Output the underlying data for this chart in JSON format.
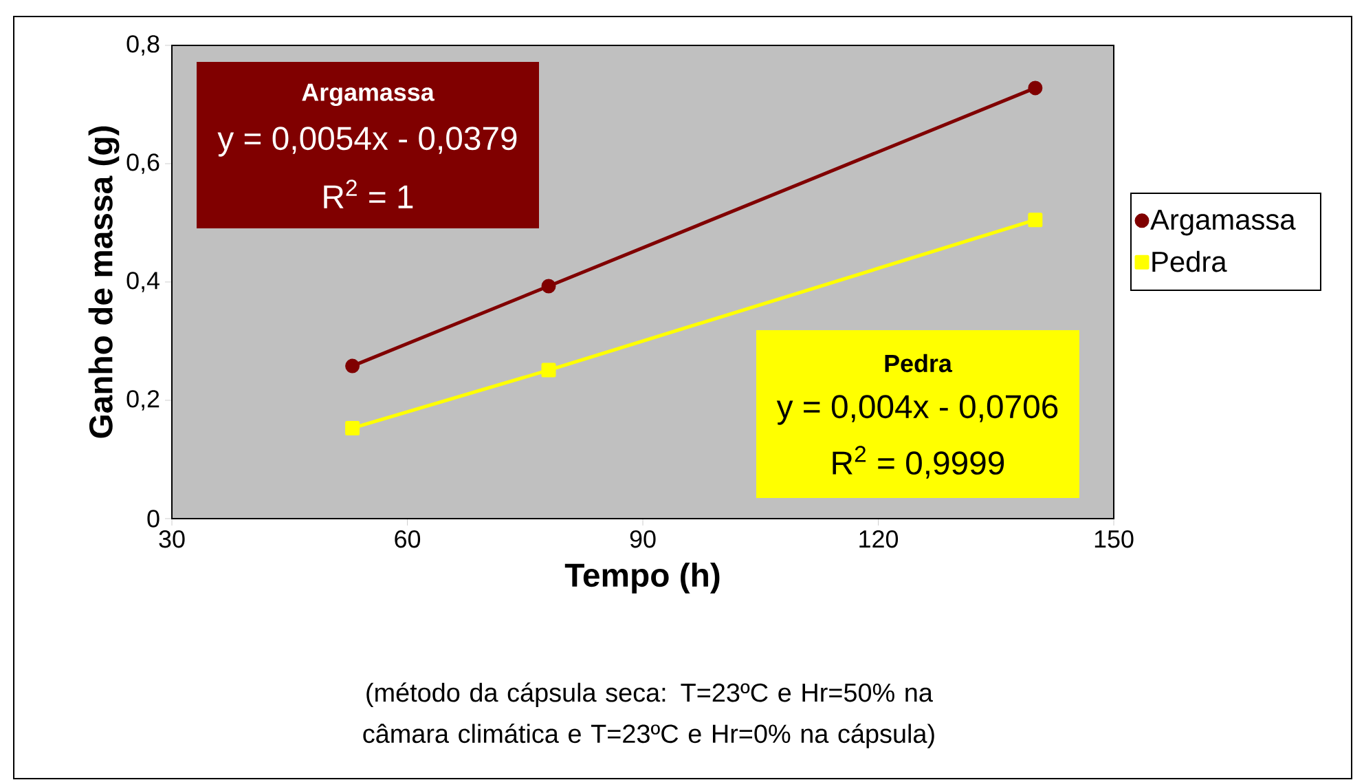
{
  "chart_data": {
    "type": "line",
    "xlabel": "Tempo (h)",
    "ylabel": "Ganho de massa (g)",
    "x": [
      53,
      78,
      140
    ],
    "series": [
      {
        "name": "Argamassa",
        "color": "#800000",
        "marker": "circle",
        "values": [
          0.258,
          0.393,
          0.728
        ]
      },
      {
        "name": "Pedra",
        "color": "#ffff00",
        "marker": "square",
        "values": [
          0.153,
          0.251,
          0.505
        ]
      }
    ],
    "xlim": [
      30,
      150
    ],
    "xticks": [
      30,
      60,
      90,
      120,
      150
    ],
    "ylim": [
      0,
      0.8
    ],
    "yticks": [
      0,
      {
        "value": 0.2,
        "label": "0,2"
      },
      {
        "value": 0.4,
        "label": "0,4"
      },
      {
        "value": 0.6,
        "label": "0,6"
      },
      {
        "value": 0.8,
        "label": "0,8"
      }
    ],
    "legend": "right",
    "line_style": "solid",
    "annotations": [
      "Argamassa",
      "y = 0,0054x - 0,0379",
      "R$^{2}$ = 1",
      "Pedra",
      "y = 0,004x - 0,0706",
      "R$^{2}$ = 0,9999",
      "(método da cápsula seca: T=23ºC e Hr=50% na câmara climática e T=23ºC e Hr=0% na cápsula)"
    ]
  }
}
